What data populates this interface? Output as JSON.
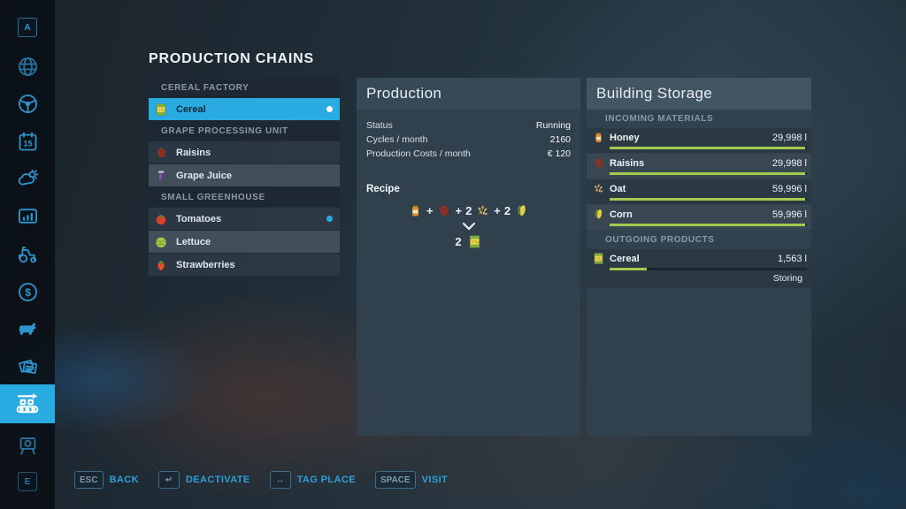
{
  "colors": {
    "accent": "#29abe2",
    "bar_green": "#a3cb4d",
    "selected_text": "#0a2836",
    "selected_dot": "#ffffff",
    "tomatoes_dot": "#29abe2"
  },
  "page_title": "PRODUCTION CHAINS",
  "sidebar": {
    "items": [
      {
        "icon": "a-key-hint",
        "label": "A"
      },
      {
        "icon": "globe"
      },
      {
        "icon": "steering-wheel"
      },
      {
        "icon": "calendar",
        "label": "15"
      },
      {
        "icon": "weather"
      },
      {
        "icon": "statistics-chart"
      },
      {
        "icon": "tractor"
      },
      {
        "icon": "finances",
        "label": "$"
      },
      {
        "icon": "animals-cow"
      },
      {
        "icon": "contracts-cards"
      },
      {
        "icon": "production-chains-conveyor",
        "selected": true
      },
      {
        "icon": "presentation-board"
      },
      {
        "icon": "e-key-hint",
        "label": "E"
      }
    ]
  },
  "chain_list": {
    "groups": [
      {
        "header": "CEREAL FACTORY",
        "items": [
          {
            "label": "Cereal",
            "icon": "cereal",
            "selected": true,
            "dot": "white"
          }
        ]
      },
      {
        "header": "GRAPE PROCESSING UNIT",
        "items": [
          {
            "label": "Raisins",
            "icon": "raisins"
          },
          {
            "label": "Grape Juice",
            "icon": "grape-juice"
          }
        ]
      },
      {
        "header": "SMALL GREENHOUSE",
        "items": [
          {
            "label": "Tomatoes",
            "icon": "tomato",
            "dot": "cyan"
          },
          {
            "label": "Lettuce",
            "icon": "lettuce"
          },
          {
            "label": "Strawberries",
            "icon": "strawberry"
          }
        ]
      }
    ]
  },
  "production": {
    "title": "Production",
    "rows": [
      {
        "label": "Status",
        "value": "Running"
      },
      {
        "label": "Cycles / month",
        "value": "2160"
      },
      {
        "label": "Production Costs / month",
        "value": "€ 120"
      }
    ],
    "recipe": {
      "label": "Recipe",
      "plus_sign": "+",
      "inputs": [
        {
          "qty": "",
          "icon": "honey"
        },
        {
          "qty": "",
          "icon": "raisins"
        },
        {
          "qty": "2",
          "icon": "oat"
        },
        {
          "qty": "2",
          "icon": "corn"
        }
      ],
      "output": {
        "qty": "2",
        "icon": "cereal"
      }
    }
  },
  "storage": {
    "title": "Building Storage",
    "incoming_header": "INCOMING MATERIALS",
    "incoming": [
      {
        "name": "Honey",
        "icon": "honey",
        "amount": "29,998 l",
        "fill_pct": 99
      },
      {
        "name": "Raisins",
        "icon": "raisins",
        "amount": "29,998 l",
        "fill_pct": 99
      },
      {
        "name": "Oat",
        "icon": "oat",
        "amount": "59,996 l",
        "fill_pct": 99
      },
      {
        "name": "Corn",
        "icon": "corn",
        "amount": "59,996 l",
        "fill_pct": 99
      }
    ],
    "outgoing_header": "OUTGOING PRODUCTS",
    "outgoing": [
      {
        "name": "Cereal",
        "icon": "cereal",
        "amount": "1,563 l",
        "fill_pct": 19,
        "status": "Storing"
      }
    ]
  },
  "bottom_bar": [
    {
      "key": "ESC",
      "label": "BACK"
    },
    {
      "key": "↵",
      "label": "DEACTIVATE"
    },
    {
      "key": "↔",
      "label": "TAG PLACE"
    },
    {
      "key": "SPACE",
      "label": "VISIT"
    }
  ]
}
